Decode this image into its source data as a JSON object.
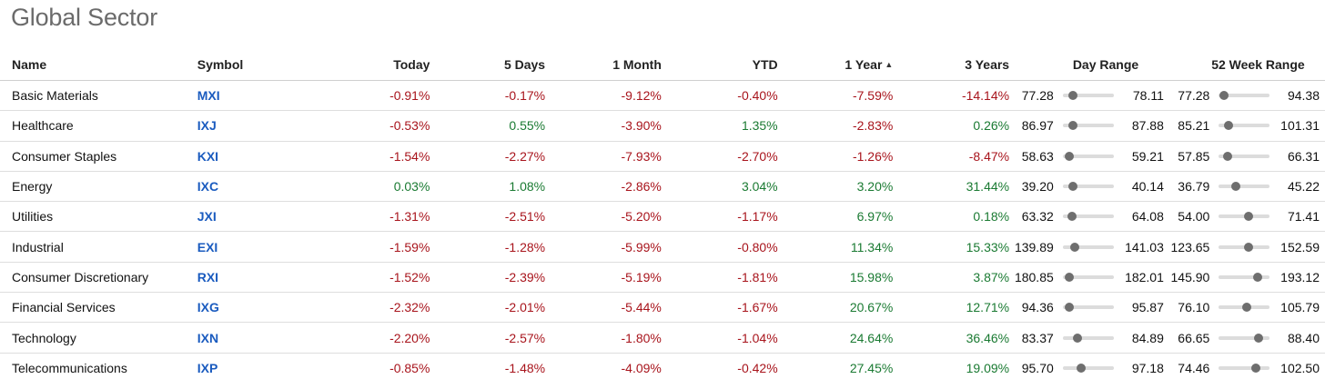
{
  "page_title": "Global Sector",
  "columns": {
    "name": "Name",
    "symbol": "Symbol",
    "today": "Today",
    "five_days": "5 Days",
    "one_month": "1 Month",
    "ytd": "YTD",
    "one_year": "1 Year",
    "three_years": "3 Years",
    "day_range": "Day Range",
    "week52_range": "52 Week Range"
  },
  "sort": {
    "column": "one_year",
    "direction": "ascending",
    "icon": "caret-up-icon"
  },
  "colors": {
    "negative": "#a8141c",
    "positive": "#1a7a32",
    "symbol_link": "#1a5bbf"
  },
  "rows": [
    {
      "name": "Basic Materials",
      "symbol": "MXI",
      "today": "-0.91%",
      "five_days": "-0.17%",
      "one_month": "-9.12%",
      "ytd": "-0.40%",
      "one_year": "-7.59%",
      "three_years": "-14.14%",
      "day_low": "77.28",
      "day_high": "78.11",
      "day_pos": 0.12,
      "wk_low": "77.28",
      "wk_high": "94.38",
      "wk_pos": 0.02
    },
    {
      "name": "Healthcare",
      "symbol": "IXJ",
      "today": "-0.53%",
      "five_days": "0.55%",
      "one_month": "-3.90%",
      "ytd": "1.35%",
      "one_year": "-2.83%",
      "three_years": "0.26%",
      "day_low": "86.97",
      "day_high": "87.88",
      "day_pos": 0.13,
      "wk_low": "85.21",
      "wk_high": "101.31",
      "wk_pos": 0.12
    },
    {
      "name": "Consumer Staples",
      "symbol": "KXI",
      "today": "-1.54%",
      "five_days": "-2.27%",
      "one_month": "-7.93%",
      "ytd": "-2.70%",
      "one_year": "-1.26%",
      "three_years": "-8.47%",
      "day_low": "58.63",
      "day_high": "59.21",
      "day_pos": 0.04,
      "wk_low": "57.85",
      "wk_high": "66.31",
      "wk_pos": 0.1
    },
    {
      "name": "Energy",
      "symbol": "IXC",
      "today": "0.03%",
      "five_days": "1.08%",
      "one_month": "-2.86%",
      "ytd": "3.04%",
      "one_year": "3.20%",
      "three_years": "31.44%",
      "day_low": "39.20",
      "day_high": "40.14",
      "day_pos": 0.12,
      "wk_low": "36.79",
      "wk_high": "45.22",
      "wk_pos": 0.27
    },
    {
      "name": "Utilities",
      "symbol": "JXI",
      "today": "-1.31%",
      "five_days": "-2.51%",
      "one_month": "-5.20%",
      "ytd": "-1.17%",
      "one_year": "6.97%",
      "three_years": "0.18%",
      "day_low": "63.32",
      "day_high": "64.08",
      "day_pos": 0.1,
      "wk_low": "54.00",
      "wk_high": "71.41",
      "wk_pos": 0.55
    },
    {
      "name": "Industrial",
      "symbol": "EXI",
      "today": "-1.59%",
      "five_days": "-1.28%",
      "one_month": "-5.99%",
      "ytd": "-0.80%",
      "one_year": "11.34%",
      "three_years": "15.33%",
      "day_low": "139.89",
      "day_high": "141.03",
      "day_pos": 0.16,
      "wk_low": "123.65",
      "wk_high": "152.59",
      "wk_pos": 0.56
    },
    {
      "name": "Consumer Discretionary",
      "symbol": "RXI",
      "today": "-1.52%",
      "five_days": "-2.39%",
      "one_month": "-5.19%",
      "ytd": "-1.81%",
      "one_year": "15.98%",
      "three_years": "3.87%",
      "day_low": "180.85",
      "day_high": "182.01",
      "day_pos": 0.04,
      "wk_low": "145.90",
      "wk_high": "193.12",
      "wk_pos": 0.75
    },
    {
      "name": "Financial Services",
      "symbol": "IXG",
      "today": "-2.32%",
      "five_days": "-2.01%",
      "one_month": "-5.44%",
      "ytd": "-1.67%",
      "one_year": "20.67%",
      "three_years": "12.71%",
      "day_low": "94.36",
      "day_high": "95.87",
      "day_pos": 0.04,
      "wk_low": "76.10",
      "wk_high": "105.79",
      "wk_pos": 0.52
    },
    {
      "name": "Technology",
      "symbol": "IXN",
      "today": "-2.20%",
      "five_days": "-2.57%",
      "one_month": "-1.80%",
      "ytd": "-1.04%",
      "one_year": "24.64%",
      "three_years": "36.46%",
      "day_low": "83.37",
      "day_high": "84.89",
      "day_pos": 0.22,
      "wk_low": "66.65",
      "wk_high": "88.40",
      "wk_pos": 0.77
    },
    {
      "name": "Telecommunications",
      "symbol": "IXP",
      "today": "-0.85%",
      "five_days": "-1.48%",
      "one_month": "-4.09%",
      "ytd": "-0.42%",
      "one_year": "27.45%",
      "three_years": "19.09%",
      "day_low": "95.70",
      "day_high": "97.18",
      "day_pos": 0.3,
      "wk_low": "74.46",
      "wk_high": "102.50",
      "wk_pos": 0.71
    }
  ]
}
